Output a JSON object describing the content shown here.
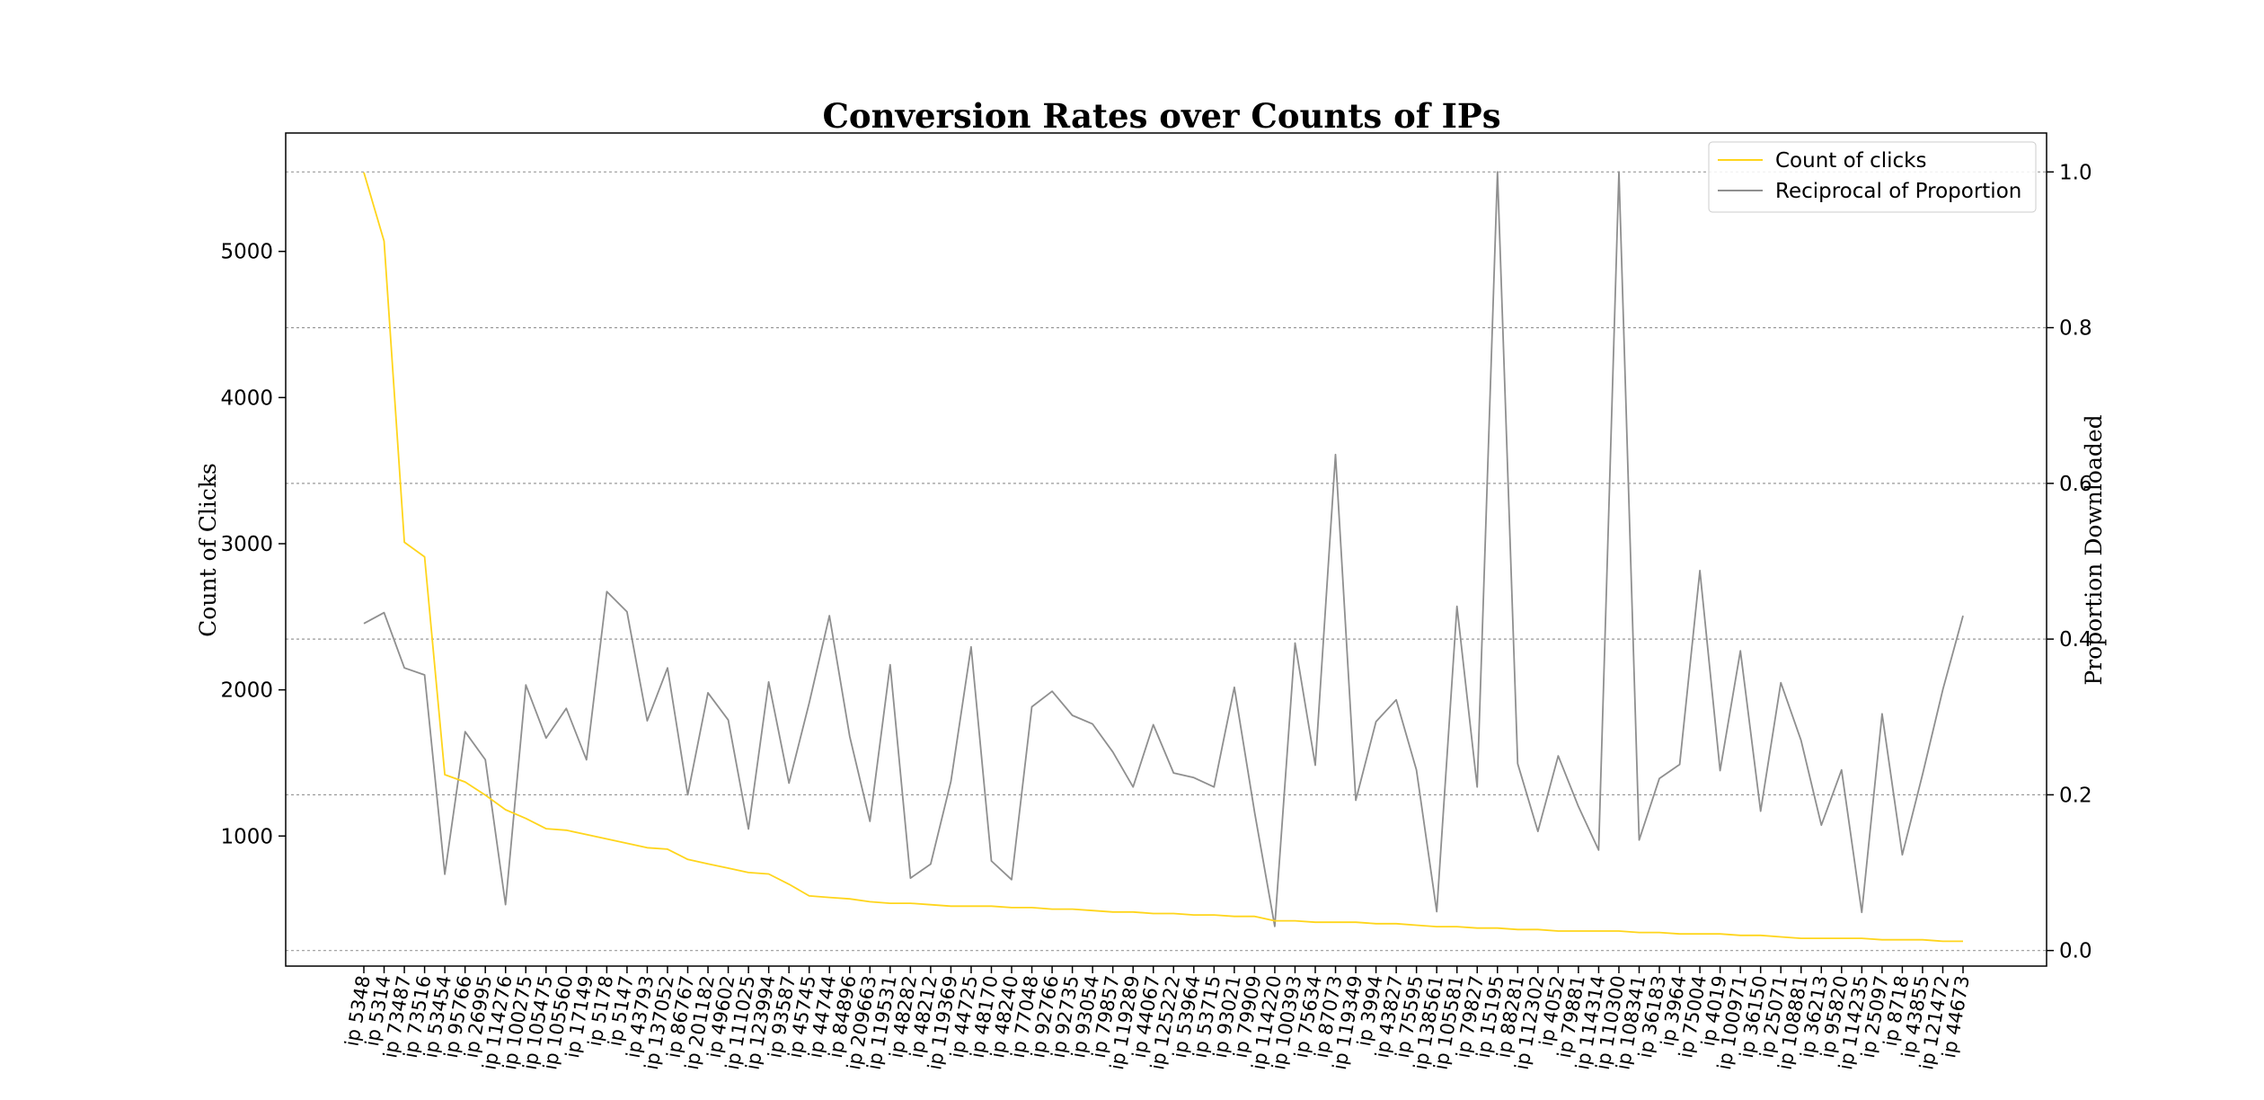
{
  "chart_data": {
    "type": "line",
    "title": "Conversion Rates over Counts of IPs",
    "ylabel": "Count of Clicks",
    "y2label": "Proportion Downloaded",
    "ylim": [
      110,
      5810
    ],
    "y2lim": [
      -0.02,
      1.05
    ],
    "yticks": [
      1000,
      2000,
      3000,
      4000,
      5000
    ],
    "y2ticks": [
      0.0,
      0.2,
      0.4,
      0.6,
      0.8,
      1.0
    ],
    "grid": "horizontal (right axis)",
    "legend_position": "top-right",
    "categories": [
      "ip 5348",
      "ip 5314",
      "ip 73487",
      "ip 73516",
      "ip 53454",
      "ip 95766",
      "ip 26995",
      "ip 114276",
      "ip 100275",
      "ip 105475",
      "ip 105560",
      "ip 17149",
      "ip 5178",
      "ip 5147",
      "ip 43793",
      "ip 137052",
      "ip 86767",
      "ip 201182",
      "ip 49602",
      "ip 111025",
      "ip 123994",
      "ip 93587",
      "ip 45745",
      "ip 44744",
      "ip 84896",
      "ip 209663",
      "ip 119531",
      "ip 48282",
      "ip 48212",
      "ip 119369",
      "ip 44725",
      "ip 48170",
      "ip 48240",
      "ip 77048",
      "ip 92766",
      "ip 92735",
      "ip 93054",
      "ip 79857",
      "ip 119289",
      "ip 44067",
      "ip 125222",
      "ip 53964",
      "ip 53715",
      "ip 93021",
      "ip 79909",
      "ip 114220",
      "ip 100393",
      "ip 75634",
      "ip 87073",
      "ip 119349",
      "ip 3994",
      "ip 43827",
      "ip 75595",
      "ip 138561",
      "ip 105581",
      "ip 79827",
      "ip 15195",
      "ip 88281",
      "ip 112302",
      "ip 4052",
      "ip 79881",
      "ip 114314",
      "ip 110300",
      "ip 108341",
      "ip 36183",
      "ip 3964",
      "ip 75004",
      "ip 4019",
      "ip 100971",
      "ip 36150",
      "ip 25071",
      "ip 108881",
      "ip 36213",
      "ip 95820",
      "ip 114235",
      "ip 25097",
      "ip 8718",
      "ip 43855",
      "ip 121472",
      "ip 44673"
    ],
    "series": [
      {
        "name": "Count of clicks",
        "axis": "left",
        "color": "#ffd51c",
        "values": [
          5540,
          5070,
          3010,
          2910,
          1420,
          1370,
          1280,
          1180,
          1120,
          1050,
          1040,
          1010,
          980,
          950,
          920,
          910,
          840,
          810,
          780,
          750,
          740,
          670,
          590,
          580,
          570,
          550,
          540,
          540,
          530,
          520,
          520,
          520,
          510,
          510,
          500,
          500,
          490,
          480,
          480,
          470,
          470,
          460,
          460,
          450,
          450,
          420,
          420,
          410,
          410,
          410,
          400,
          400,
          390,
          380,
          380,
          370,
          370,
          360,
          360,
          350,
          350,
          350,
          350,
          340,
          340,
          330,
          330,
          330,
          320,
          320,
          310,
          300,
          300,
          300,
          300,
          290,
          290,
          290,
          280,
          280
        ]
      },
      {
        "name": "Reciprocal of Proportion",
        "axis": "right",
        "color": "#8f8f8f",
        "values": [
          0.42,
          0.434,
          0.363,
          0.354,
          0.098,
          0.281,
          0.245,
          0.059,
          0.341,
          0.273,
          0.311,
          0.245,
          0.461,
          0.435,
          0.295,
          0.363,
          0.2,
          0.331,
          0.296,
          0.156,
          0.345,
          0.215,
          0.318,
          0.43,
          0.275,
          0.166,
          0.367,
          0.093,
          0.111,
          0.217,
          0.39,
          0.115,
          0.091,
          0.313,
          0.333,
          0.302,
          0.291,
          0.255,
          0.21,
          0.29,
          0.228,
          0.222,
          0.21,
          0.338,
          0.178,
          0.031,
          0.395,
          0.238,
          0.637,
          0.193,
          0.294,
          0.322,
          0.232,
          0.05,
          0.442,
          0.21,
          1.0,
          0.24,
          0.153,
          0.25,
          0.185,
          0.129,
          1.0,
          0.142,
          0.221,
          0.239,
          0.488,
          0.231,
          0.385,
          0.179,
          0.344,
          0.27,
          0.161,
          0.232,
          0.049,
          0.304,
          0.123,
          0.226,
          0.335,
          0.43
        ]
      }
    ]
  }
}
